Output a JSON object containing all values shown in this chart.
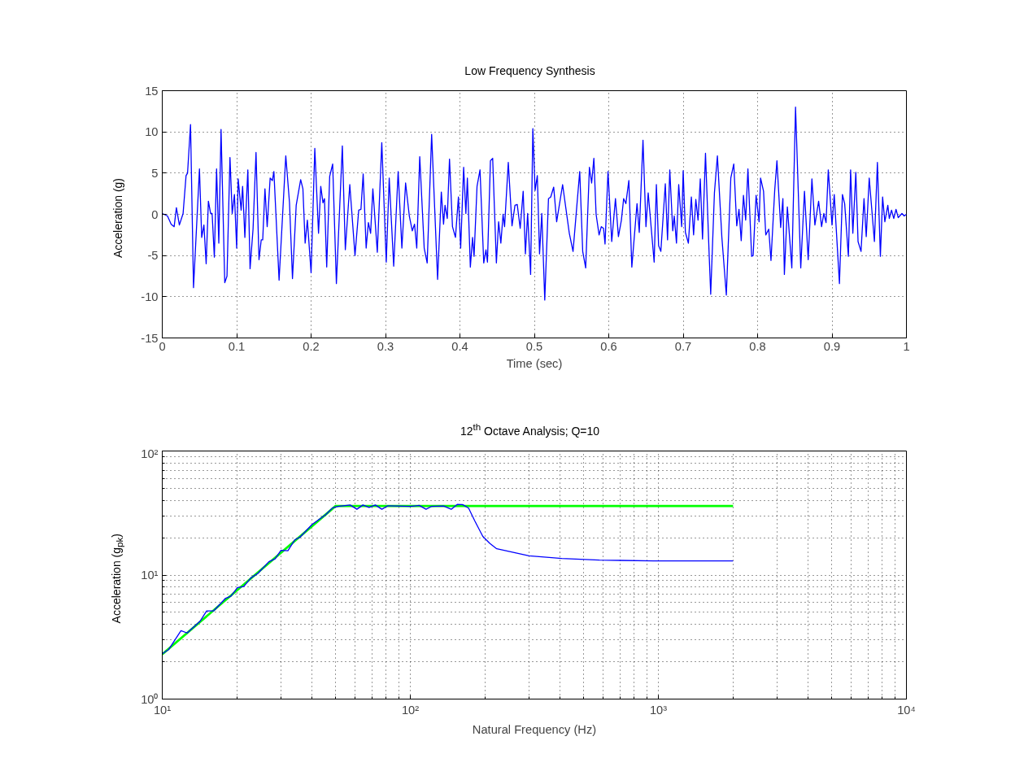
{
  "chart_data": [
    {
      "type": "line",
      "title": "Low Frequency Synthesis",
      "xlabel": "Time (sec)",
      "ylabel": "Acceleration (g)",
      "xlim": [
        0,
        1
      ],
      "ylim": [
        -15,
        15
      ],
      "xticks": [
        0,
        0.1,
        0.2,
        0.3,
        0.4,
        0.5,
        0.6,
        0.7,
        0.8,
        0.9,
        1
      ],
      "yticks": [
        -15,
        -10,
        -5,
        0,
        5,
        10,
        15
      ],
      "grid": true,
      "series": [
        {
          "color": "#0000ff",
          "x": [
            0.0,
            0.007,
            0.012,
            0.016,
            0.019,
            0.023,
            0.028,
            0.032,
            0.034,
            0.038,
            0.042,
            0.05,
            0.053,
            0.056,
            0.059,
            0.062,
            0.065,
            0.067,
            0.07,
            0.073,
            0.076,
            0.079,
            0.084,
            0.087,
            0.091,
            0.094,
            0.097,
            0.1,
            0.102,
            0.106,
            0.108,
            0.111,
            0.115,
            0.118,
            0.122,
            0.126,
            0.13,
            0.133,
            0.135,
            0.138,
            0.141,
            0.145,
            0.148,
            0.15,
            0.157,
            0.166,
            0.171,
            0.175,
            0.18,
            0.186,
            0.189,
            0.192,
            0.195,
            0.2,
            0.205,
            0.21,
            0.213,
            0.216,
            0.218,
            0.221,
            0.225,
            0.229,
            0.234,
            0.242,
            0.246,
            0.252,
            0.259,
            0.264,
            0.267,
            0.27,
            0.274,
            0.277,
            0.28,
            0.283,
            0.289,
            0.295,
            0.301,
            0.305,
            0.311,
            0.317,
            0.322,
            0.327,
            0.332,
            0.336,
            0.339,
            0.342,
            0.346,
            0.352,
            0.356,
            0.362,
            0.37,
            0.375,
            0.378,
            0.38,
            0.383,
            0.386,
            0.39,
            0.394,
            0.398,
            0.401,
            0.405,
            0.408,
            0.41,
            0.414,
            0.417,
            0.419,
            0.423,
            0.427,
            0.432,
            0.435,
            0.437,
            0.441,
            0.444,
            0.449,
            0.452,
            0.455,
            0.458,
            0.46,
            0.465,
            0.47,
            0.474,
            0.477,
            0.481,
            0.485,
            0.488,
            0.491,
            0.495,
            0.498,
            0.501,
            0.504,
            0.507,
            0.51,
            0.514,
            0.519,
            0.522,
            0.526,
            0.53,
            0.538,
            0.547,
            0.552,
            0.557,
            0.561,
            0.565,
            0.569,
            0.574,
            0.577,
            0.58,
            0.583,
            0.587,
            0.59,
            0.593,
            0.595,
            0.599,
            0.604,
            0.609,
            0.613,
            0.617,
            0.62,
            0.623,
            0.627,
            0.631,
            0.638,
            0.641,
            0.646,
            0.65,
            0.653,
            0.661,
            0.664,
            0.667,
            0.67,
            0.676,
            0.679,
            0.682,
            0.686,
            0.688,
            0.691,
            0.694,
            0.698,
            0.7,
            0.703,
            0.707,
            0.711,
            0.714,
            0.717,
            0.72,
            0.723,
            0.726,
            0.73,
            0.735,
            0.737,
            0.742,
            0.746,
            0.752,
            0.758,
            0.764,
            0.768,
            0.772,
            0.775,
            0.778,
            0.781,
            0.784,
            0.787,
            0.792,
            0.794,
            0.798,
            0.802,
            0.804,
            0.808,
            0.811,
            0.815,
            0.818,
            0.823,
            0.826,
            0.831,
            0.834,
            0.836,
            0.84,
            0.846,
            0.851,
            0.858,
            0.863,
            0.868,
            0.873,
            0.877,
            0.882,
            0.886,
            0.889,
            0.892,
            0.895,
            0.9,
            0.903,
            0.91,
            0.914,
            0.917,
            0.922,
            0.925,
            0.928,
            0.932,
            0.935,
            0.939,
            0.943,
            0.946,
            0.95,
            0.957,
            0.961,
            0.965,
            0.968,
            0.971,
            0.975,
            0.977,
            0.98,
            0.983,
            0.986,
            0.989,
            0.994,
            0.997,
            1.0
          ],
          "values": [
            0.1,
            -0.2,
            -1.2,
            -1.5,
            0.8,
            -1.3,
            0.1,
            4.7,
            5.0,
            10.9,
            -8.9,
            5.5,
            -2.8,
            -1.3,
            -6.0,
            1.6,
            0.1,
            0.1,
            -5.2,
            5.5,
            -3.5,
            10.3,
            -8.3,
            -7.5,
            6.9,
            0.1,
            2.4,
            -4.1,
            4.3,
            0.5,
            3.4,
            -2.8,
            5.4,
            -6.6,
            -1.8,
            7.5,
            -5.5,
            -3.1,
            -3.1,
            3.1,
            -1.5,
            4.4,
            4.1,
            5.2,
            -8.0,
            7.1,
            1.4,
            -7.8,
            1.1,
            4.2,
            3.1,
            -3.5,
            -0.7,
            -7.1,
            8.0,
            -2.3,
            3.4,
            1.4,
            1.9,
            -6.4,
            4.6,
            6.1,
            -8.4,
            8.3,
            -4.3,
            3.6,
            -5.0,
            0.5,
            0.6,
            4.9,
            -4.1,
            -1.0,
            -2.3,
            3.1,
            -4.6,
            8.7,
            -5.8,
            4.4,
            -6.3,
            5.2,
            -4.1,
            3.8,
            -0.2,
            -2.0,
            -1.2,
            -4.1,
            7.0,
            -4.1,
            -5.9,
            9.7,
            -7.9,
            2.7,
            -1.2,
            1.1,
            -0.5,
            6.7,
            -1.5,
            -2.8,
            2.1,
            -4.1,
            5.7,
            0.1,
            4.4,
            -6.4,
            -2.8,
            -5.1,
            3.4,
            5.4,
            -5.9,
            -4.3,
            -5.8,
            6.5,
            6.8,
            -5.9,
            -0.9,
            -3.5,
            0.0,
            -1.5,
            6.3,
            -1.4,
            1.1,
            1.2,
            -1.7,
            2.8,
            -4.8,
            0.1,
            -7.3,
            10.4,
            2.9,
            4.7,
            -4.8,
            0.1,
            -10.4,
            1.9,
            2.1,
            3.3,
            -0.9,
            3.6,
            -2.3,
            -4.5,
            0.9,
            5.2,
            -4.5,
            -6.5,
            5.7,
            3.8,
            6.8,
            0.0,
            -2.5,
            -1.5,
            -1.7,
            -3.6,
            5.2,
            -3.3,
            1.9,
            -2.7,
            -0.7,
            1.9,
            1.3,
            4.1,
            -6.4,
            1.3,
            -2.2,
            9.0,
            -1.5,
            2.6,
            -5.8,
            3.6,
            -3.8,
            -4.5,
            3.7,
            -3.1,
            5.4,
            -2.0,
            -0.2,
            -3.5,
            3.6,
            -1.5,
            5.3,
            -2.2,
            -3.5,
            2.1,
            -2.5,
            1.8,
            -0.7,
            4.3,
            -3.0,
            7.4,
            -5.1,
            -9.7,
            2.6,
            7.1,
            -2.8,
            -9.8,
            4.4,
            6.1,
            -1.4,
            0.6,
            -3.2,
            2.3,
            -0.7,
            5.5,
            -5.1,
            -5.0,
            2.3,
            -0.9,
            4.4,
            2.8,
            -2.5,
            -1.8,
            -5.6,
            2.9,
            6.5,
            -1.6,
            1.9,
            -7.3,
            0.9,
            -6.5,
            13.0,
            -6.5,
            2.8,
            -5.5,
            4.3,
            -1.3,
            1.6,
            -1.5,
            0.1,
            -1.0,
            5.4,
            -1.3,
            2.4,
            -8.4,
            2.4,
            1.3,
            -5.1,
            5.4,
            -2.3,
            5.1,
            -3.3,
            -4.5,
            1.9,
            -2.7,
            4.4,
            -3.3,
            6.3,
            -5.1,
            2.1,
            -0.9,
            1.1,
            -0.5,
            0.5,
            -0.5,
            0.6,
            -0.4,
            0.1,
            -0.2,
            0.0
          ]
        }
      ]
    },
    {
      "type": "line",
      "title": "12$^{th}$ Octave Analysis; Q=10",
      "xlabel": "Natural Frequency (Hz)",
      "ylabel": "Acceleration (g$_{pk}$)",
      "log": "xy",
      "xlim": [
        10,
        10000
      ],
      "ylim": [
        1,
        100
      ],
      "xticks": [
        {
          "value": 10,
          "label": "10¹"
        },
        {
          "value": 100,
          "label": "10²"
        },
        {
          "value": 1000,
          "label": "10³"
        },
        {
          "value": 10000,
          "label": "10⁴"
        }
      ],
      "yticks": [
        {
          "value": 1,
          "label": "10⁰"
        },
        {
          "value": 10,
          "label": "10¹"
        },
        {
          "value": 100,
          "label": "10²"
        }
      ],
      "grid": true,
      "series": [
        {
          "color": "#00ff00",
          "x": [
            10,
            50,
            2000
          ],
          "values": [
            2.3,
            36,
            36
          ]
        },
        {
          "color": "#0000ff",
          "x": [
            10,
            10.6,
            11.9,
            12.6,
            14.2,
            15.1,
            16.1,
            18.0,
            18.9,
            20.1,
            21.3,
            22.8,
            24.3,
            26.9,
            28.5,
            30.1,
            32.1,
            34.2,
            35.9,
            40.2,
            45.6,
            48.6,
            51.1,
            57.2,
            60.9,
            64.4,
            68.2,
            72.3,
            76.8,
            81.3,
            100,
            108.6,
            115.7,
            121.6,
            136.2,
            146.2,
            154.5,
            162.5,
            171.8,
            182,
            196,
            209,
            223,
            301,
            408,
            579,
            958,
            2000
          ],
          "values": [
            2.32,
            2.5,
            3.56,
            3.41,
            4.24,
            5.13,
            5.13,
            6.5,
            6.73,
            7.94,
            8.07,
            9.5,
            10.3,
            12.8,
            13.5,
            15.8,
            15.7,
            19.2,
            20.2,
            25.6,
            30.7,
            34.8,
            35.7,
            36.7,
            33.9,
            36.7,
            35.1,
            36.7,
            33.9,
            36.2,
            35.7,
            36.4,
            33.9,
            35.7,
            36,
            33.9,
            37.1,
            37.0,
            34.6,
            27.3,
            20.5,
            18.0,
            16.3,
            14.3,
            13.6,
            13.2,
            13.0,
            13.0
          ]
        }
      ]
    }
  ]
}
